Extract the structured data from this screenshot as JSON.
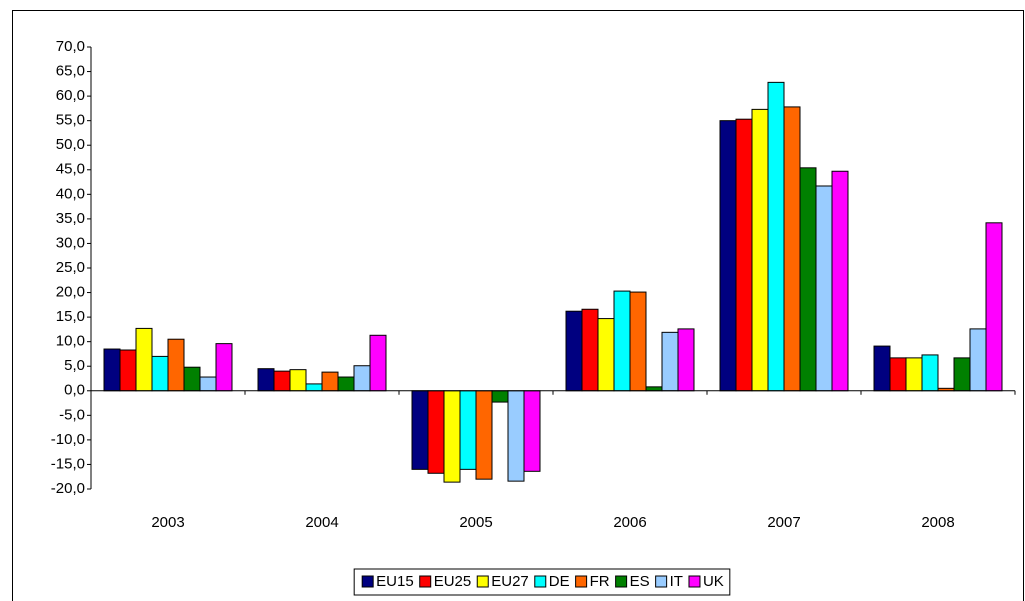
{
  "chart_data": {
    "type": "bar",
    "categories": [
      "2003",
      "2004",
      "2005",
      "2006",
      "2007",
      "2008"
    ],
    "series": [
      {
        "name": "EU15",
        "color": "#000080",
        "values": [
          8.5,
          4.5,
          -16.0,
          16.2,
          55.0,
          9.1
        ]
      },
      {
        "name": "EU25",
        "color": "#ff0000",
        "values": [
          8.3,
          4.0,
          -16.8,
          16.6,
          55.3,
          6.7
        ]
      },
      {
        "name": "EU27",
        "color": "#ffff00",
        "values": [
          12.7,
          4.3,
          -18.6,
          14.7,
          57.3,
          6.7
        ]
      },
      {
        "name": "DE",
        "color": "#00ffff",
        "values": [
          7.0,
          1.4,
          -16.0,
          20.3,
          62.8,
          7.3
        ]
      },
      {
        "name": "FR",
        "color": "#ff6600",
        "values": [
          10.5,
          3.8,
          -18.0,
          20.1,
          57.8,
          0.5
        ]
      },
      {
        "name": "ES",
        "color": "#008000",
        "values": [
          4.8,
          2.8,
          -2.3,
          0.8,
          45.4,
          6.7
        ]
      },
      {
        "name": "IT",
        "color": "#99ccff",
        "values": [
          2.8,
          5.1,
          -18.4,
          11.9,
          41.7,
          12.6
        ]
      },
      {
        "name": "UK",
        "color": "#ff00ff",
        "values": [
          9.6,
          11.3,
          -16.4,
          12.6,
          44.7,
          34.2
        ]
      }
    ],
    "ylim": [
      -20,
      70
    ],
    "yticks": [
      {
        "value": -20,
        "label": "-20,0"
      },
      {
        "value": -15,
        "label": "-15,0"
      },
      {
        "value": -10,
        "label": "-10,0"
      },
      {
        "value": -5,
        "label": "-5,0"
      },
      {
        "value": 0,
        "label": "0,0"
      },
      {
        "value": 5,
        "label": "5,0"
      },
      {
        "value": 10,
        "label": "10,0"
      },
      {
        "value": 15,
        "label": "15,0"
      },
      {
        "value": 20,
        "label": "20,0"
      },
      {
        "value": 25,
        "label": "25,0"
      },
      {
        "value": 30,
        "label": "30,0"
      },
      {
        "value": 35,
        "label": "35,0"
      },
      {
        "value": 40,
        "label": "40,0"
      },
      {
        "value": 45,
        "label": "45,0"
      },
      {
        "value": 50,
        "label": "50,0"
      },
      {
        "value": 55,
        "label": "55,0"
      },
      {
        "value": 60,
        "label": "60,0"
      },
      {
        "value": 65,
        "label": "65,0"
      },
      {
        "value": 70,
        "label": "70,0"
      }
    ],
    "grid": false,
    "legend": "bottom"
  }
}
